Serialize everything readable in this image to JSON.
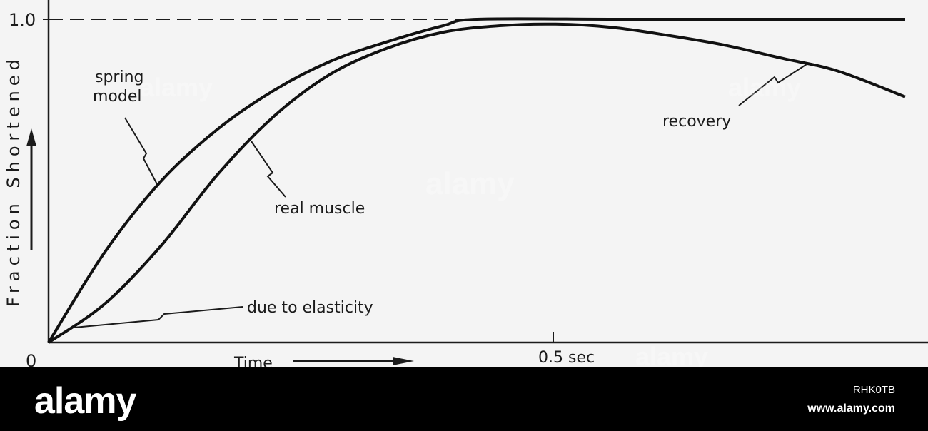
{
  "chart_data": {
    "type": "line",
    "title": "",
    "xlabel": "Time",
    "ylabel": "Fraction Shortened",
    "xlim": [
      0,
      0.76
    ],
    "ylim": [
      0,
      1.0
    ],
    "x_tick_labels": [
      "0",
      "0.5 sec"
    ],
    "y_tick_labels": [
      "1.0"
    ],
    "reference_line": {
      "y": 1.0,
      "style": "dashed"
    },
    "series": [
      {
        "name": "spring model",
        "x": [
          0,
          0.05,
          0.1,
          0.15,
          0.2,
          0.25,
          0.3,
          0.35,
          0.38,
          0.5,
          0.6,
          0.7,
          0.76
        ],
        "y": [
          0,
          0.28,
          0.5,
          0.66,
          0.78,
          0.87,
          0.93,
          0.98,
          1.0,
          1.0,
          1.0,
          1.0,
          1.0
        ]
      },
      {
        "name": "real muscle",
        "x": [
          0,
          0.05,
          0.1,
          0.15,
          0.2,
          0.25,
          0.3,
          0.35,
          0.4,
          0.45,
          0.5,
          0.55,
          0.6,
          0.65,
          0.7,
          0.76
        ],
        "y": [
          0,
          0.12,
          0.3,
          0.52,
          0.7,
          0.83,
          0.91,
          0.96,
          0.98,
          0.985,
          0.975,
          0.95,
          0.92,
          0.88,
          0.84,
          0.76
        ]
      }
    ],
    "annotations": [
      "spring model",
      "real muscle",
      "due to elasticity",
      "recovery"
    ]
  },
  "footer": {
    "logo": "alamy",
    "image_id": "RHK0TB",
    "url": "www.alamy.com"
  },
  "watermarks": [
    "alamy",
    "alamy",
    "alamy",
    "alamy"
  ]
}
